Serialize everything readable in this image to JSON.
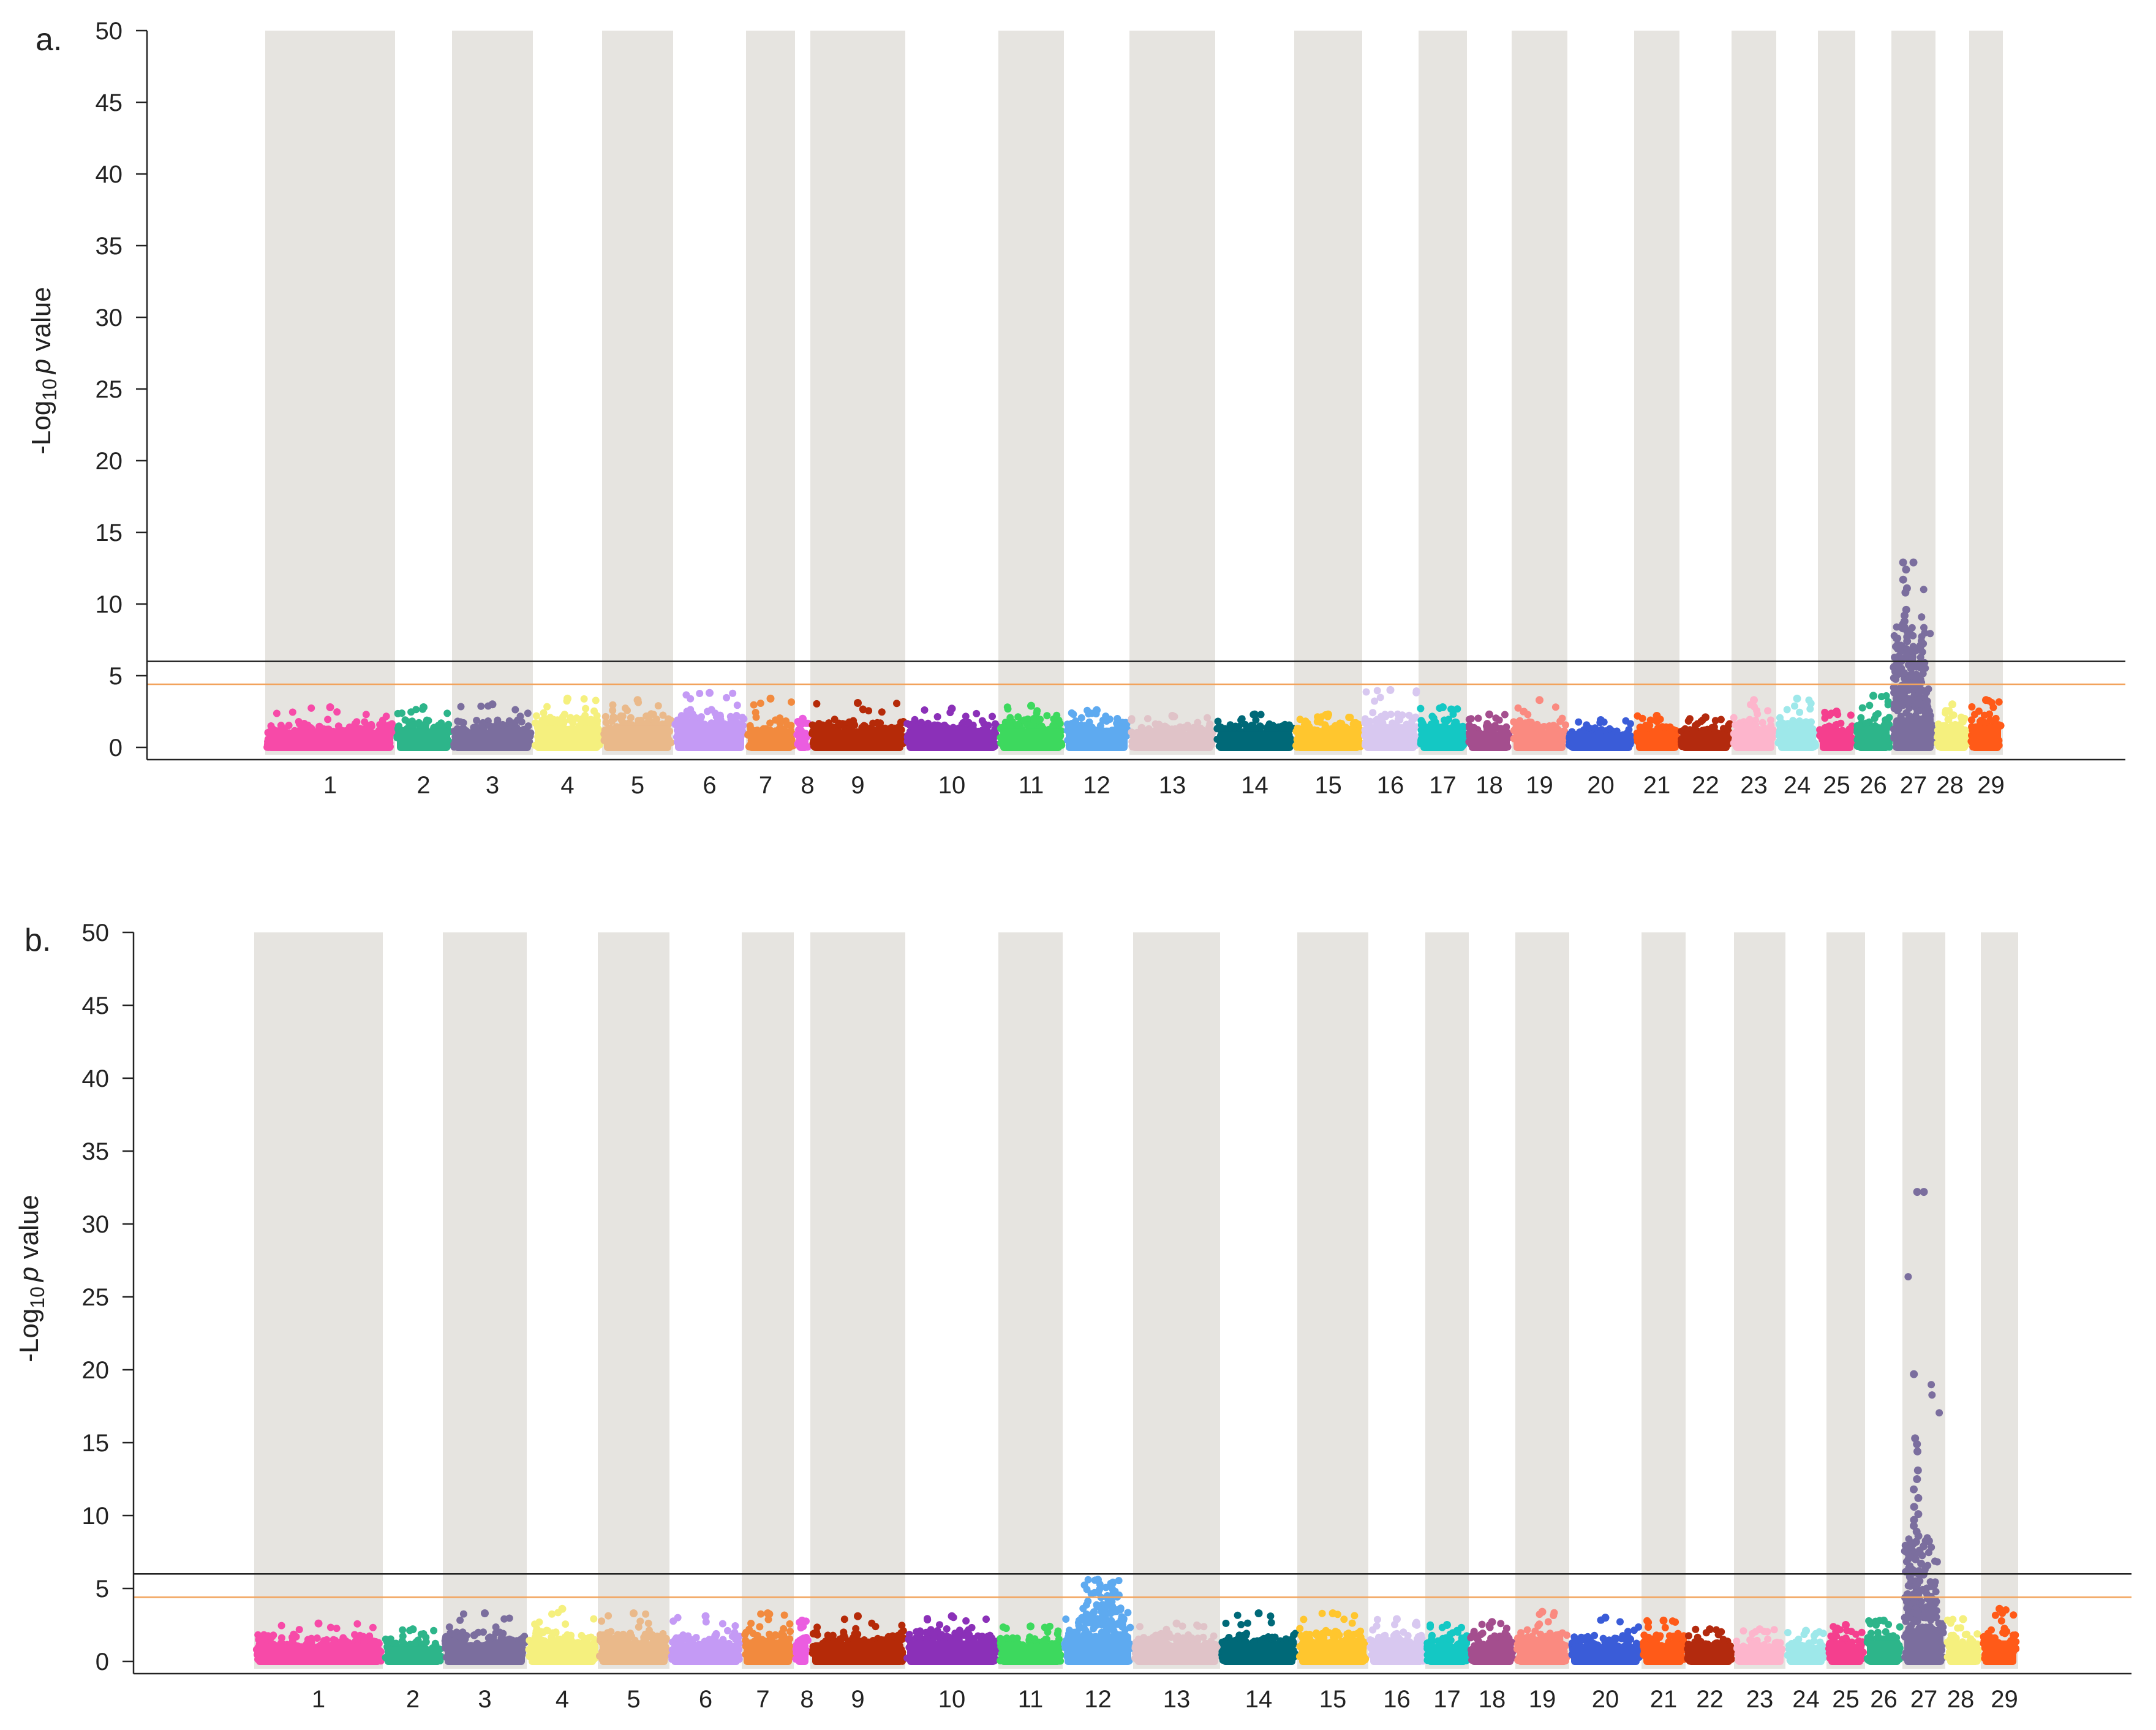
{
  "colors": {
    "stripe": "#E6E4E0",
    "axis": "#222222",
    "bonferroni_line": "#222222",
    "suggestive_line": "#F2A35C",
    "chromosomes": [
      "#F74AA8",
      "#2DB58A",
      "#7B6E9E",
      "#F5F07E",
      "#EAB98A",
      "#C49AF5",
      "#F28A3E",
      "#EB5DE0",
      "#B52A08",
      "#8B30B8",
      "#3DD95E",
      "#5EAAF0",
      "#E0C3C8",
      "#006978",
      "#FFC62E",
      "#D8C8F0",
      "#14C8C4",
      "#A44E8E",
      "#FA8A80",
      "#3A5CD8",
      "#FF5A18",
      "#B32A0E",
      "#FDB5CC",
      "#9EE8EA",
      "#F53F8E",
      "#2DB58A",
      "#7B6E9E",
      "#F5F07E",
      "#FF5A18"
    ]
  },
  "chart_data": [
    {
      "type": "scatter",
      "panel_label": "a.",
      "ylabel": {
        "prefix": "-Log",
        "subscript": "10",
        "italic": "p",
        "suffix": " value"
      },
      "ylim": [
        0,
        50
      ],
      "yticks": [
        0,
        5,
        10,
        15,
        20,
        25,
        30,
        35,
        40,
        45,
        50
      ],
      "categories": [
        "1",
        "2",
        "3",
        "4",
        "5",
        "6",
        "7",
        "8",
        "9",
        "10",
        "11",
        "12",
        "13",
        "14",
        "15",
        "16",
        "17",
        "18",
        "19",
        "20",
        "21",
        "22",
        "23",
        "24",
        "25",
        "26",
        "27",
        "28",
        "29"
      ],
      "thresholds": {
        "bonferroni": 6.0,
        "suggestive": 4.4
      },
      "chromosome_max": [
        2.8,
        2.8,
        3.0,
        3.4,
        3.3,
        3.8,
        3.4,
        2.0,
        3.1,
        2.7,
        2.9,
        2.6,
        2.2,
        2.3,
        2.3,
        4.0,
        2.8,
        2.3,
        3.3,
        1.9,
        2.2,
        2.1,
        3.3,
        3.4,
        2.5,
        3.6,
        12.9,
        3.0,
        3.3
      ],
      "chromosome_base": [
        2.0,
        2.2,
        2.1,
        2.5,
        2.5,
        2.8,
        2.0,
        1.6,
        2.1,
        2.1,
        2.2,
        2.3,
        1.8,
        1.8,
        2.0,
        2.7,
        2.3,
        1.8,
        2.0,
        1.5,
        1.8,
        1.8,
        2.3,
        2.3,
        2.0,
        2.4,
        3.5,
        2.2,
        2.5
      ],
      "peak_points": [
        12.9,
        12.4,
        11.7,
        11.1,
        10.8,
        9.6,
        9.2,
        8.8,
        8.6,
        8.3,
        8.1,
        7.7,
        7.4,
        7.1,
        6.9,
        6.6,
        6.3,
        6.1,
        5.9,
        5.7,
        5.5,
        5.3,
        5.1,
        4.9,
        4.7,
        4.5,
        4.3,
        4.1,
        3.9
      ]
    },
    {
      "type": "scatter",
      "panel_label": "b.",
      "ylabel": {
        "prefix": "-Log",
        "subscript": "10",
        "italic": "p",
        "suffix": " value"
      },
      "ylim": [
        0,
        50
      ],
      "yticks": [
        0,
        5,
        10,
        15,
        20,
        25,
        30,
        35,
        40,
        45,
        50
      ],
      "categories": [
        "1",
        "2",
        "3",
        "4",
        "5",
        "6",
        "7",
        "8",
        "9",
        "10",
        "11",
        "12",
        "13",
        "14",
        "15",
        "16",
        "17",
        "18",
        "19",
        "20",
        "21",
        "22",
        "23",
        "24",
        "25",
        "26",
        "27",
        "28",
        "29"
      ],
      "thresholds": {
        "bonferroni": 6.0,
        "suggestive": 4.4
      },
      "chromosome_max": [
        2.6,
        2.2,
        3.3,
        3.6,
        3.3,
        3.1,
        3.3,
        2.8,
        3.1,
        3.1,
        2.4,
        5.6,
        2.6,
        3.3,
        3.3,
        2.9,
        2.5,
        2.7,
        3.4,
        3.0,
        2.8,
        2.2,
        2.2,
        2.1,
        2.5,
        2.8,
        32.2,
        2.9,
        3.6
      ],
      "chromosome_base": [
        2.0,
        1.7,
        2.2,
        2.3,
        2.3,
        2.1,
        2.5,
        2.2,
        2.2,
        2.4,
        2.0,
        3.2,
        2.1,
        2.1,
        2.5,
        2.4,
        2.0,
        2.2,
        2.3,
        2.0,
        2.0,
        1.7,
        1.8,
        1.7,
        2.0,
        2.4,
        3.8,
        2.2,
        2.4
      ],
      "peak_points": [
        32.2,
        19.7,
        15.3,
        14.9,
        14.4,
        13.1,
        12.5,
        11.8,
        11.2,
        10.6,
        10.1,
        9.7,
        9.3,
        8.9,
        8.6,
        8.2,
        7.9,
        7.6,
        7.3,
        7.0,
        6.7,
        6.4,
        6.1,
        5.8,
        5.5,
        5.2,
        4.9,
        4.6,
        4.3,
        4.0
      ]
    }
  ]
}
